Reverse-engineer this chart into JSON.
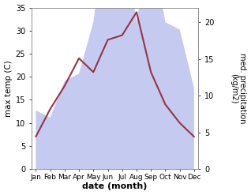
{
  "months": [
    "Jan",
    "Feb",
    "Mar",
    "Apr",
    "May",
    "Jun",
    "Jul",
    "Aug",
    "Sep",
    "Oct",
    "Nov",
    "Dec"
  ],
  "temperature": [
    7,
    13,
    18,
    24,
    21,
    28,
    29,
    34,
    21,
    14,
    10,
    7
  ],
  "precipitation": [
    8,
    7,
    12,
    13,
    20,
    35,
    35,
    20,
    32,
    20,
    19,
    11
  ],
  "temp_color": "#993344",
  "precip_fill_color": "#c5cbf0",
  "temp_ylim": [
    0,
    35
  ],
  "precip_ylim": [
    0,
    22
  ],
  "xlabel": "date (month)",
  "ylabel_left": "max temp (C)",
  "ylabel_right": "med. precipitation\n(kg/m2)",
  "background_color": "#ffffff",
  "fig_width": 3.18,
  "fig_height": 2.47,
  "dpi": 100
}
